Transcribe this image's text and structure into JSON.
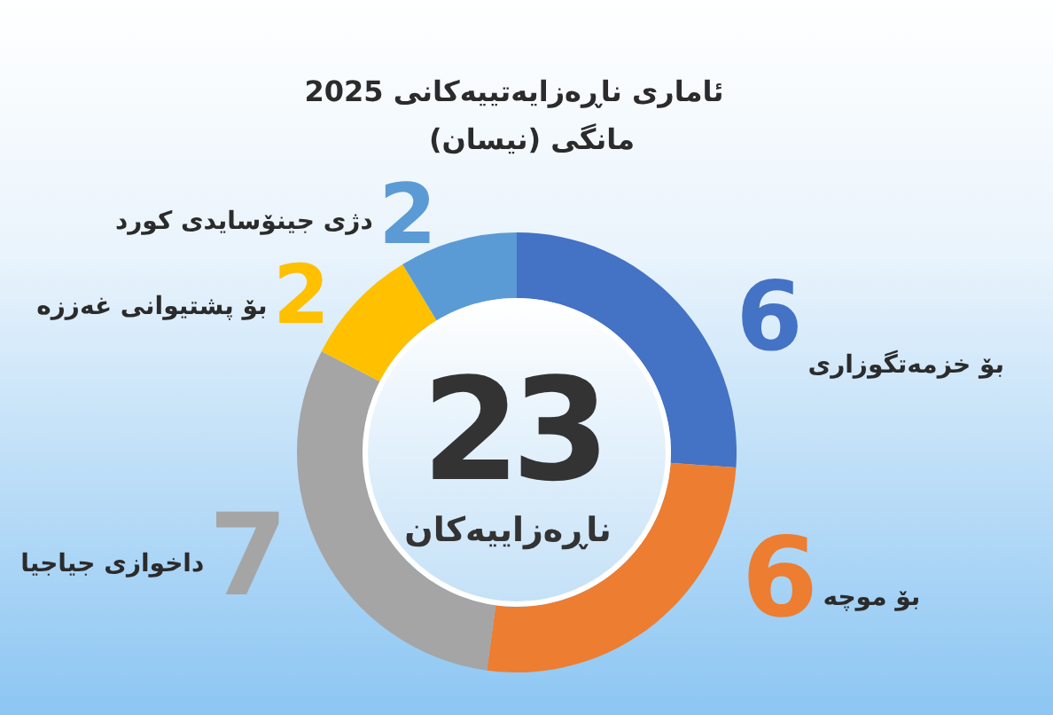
{
  "chart_data": {
    "type": "donut",
    "title": "ئاماری ناڕەزایەتییەکانی 2025",
    "subtitle": "مانگی (نیسان)",
    "categories": [
      "بۆ خزمەتگوزاری",
      "بۆ موچە",
      "داخوازی جیاجیا",
      "بۆ پشتیوانی غەززە",
      "دژی جینۆسایدی کورد"
    ],
    "values": [
      6,
      6,
      7,
      2,
      2
    ],
    "colors": [
      "#4472c4",
      "#ed7d31",
      "#a5a5a5",
      "#ffc000",
      "#5b9bd5"
    ],
    "data_labels": true,
    "annotations": [
      "23",
      "ناڕەزاییەکان"
    ]
  }
}
